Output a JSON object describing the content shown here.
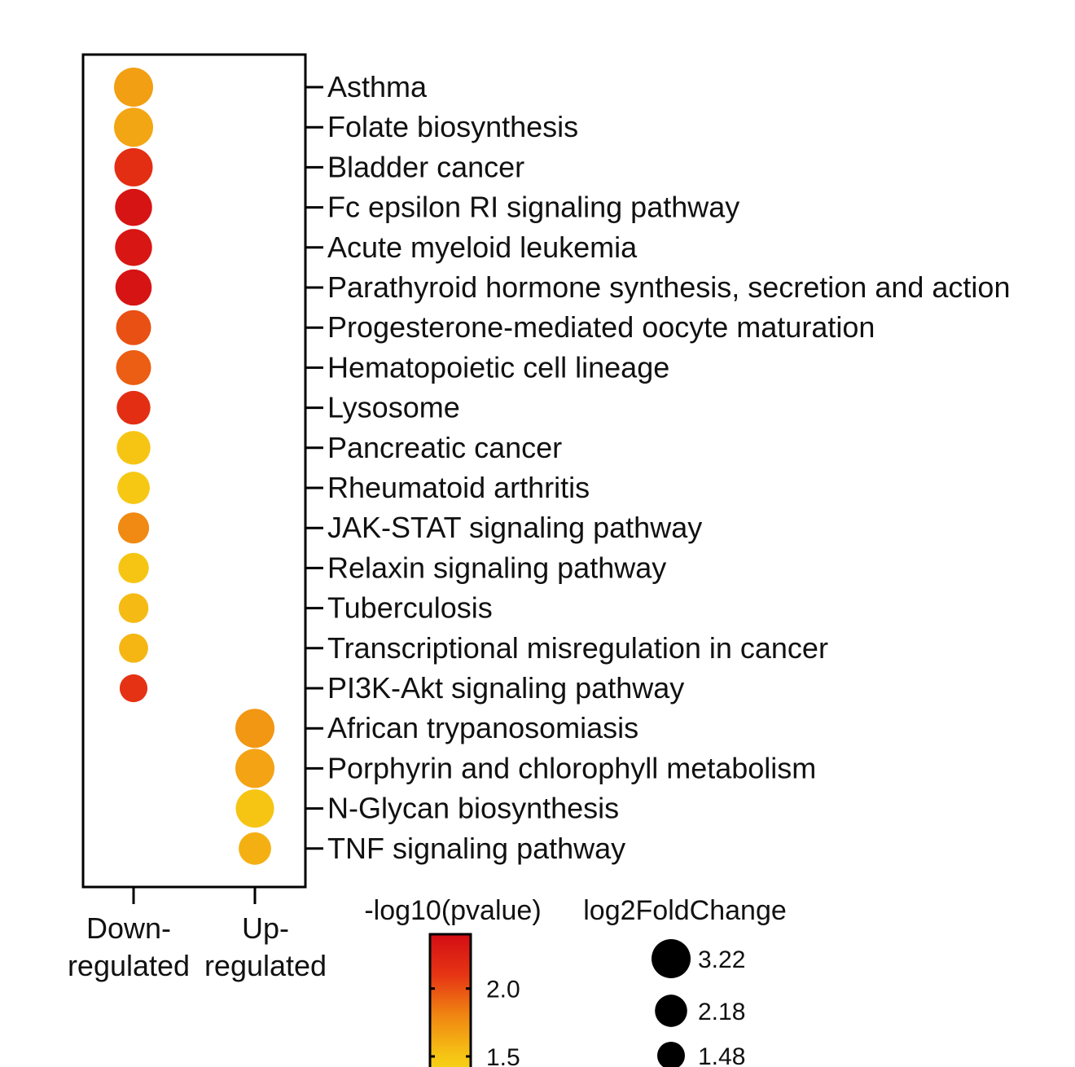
{
  "chart_data": {
    "type": "scatter",
    "x_categories": [
      "Down-\nregulated",
      "Up-\nregulated"
    ],
    "pathways": [
      "Asthma",
      "Folate biosynthesis",
      "Bladder cancer",
      "Fc epsilon RI signaling pathway",
      "Acute myeloid leukemia",
      "Parathyroid hormone synthesis, secretion and action",
      "Progesterone-mediated oocyte maturation",
      "Hematopoietic cell lineage",
      "Lysosome",
      "Pancreatic cancer",
      "Rheumatoid arthritis",
      "JAK-STAT signaling pathway",
      "Relaxin signaling pathway",
      "Tuberculosis",
      "Transcriptional misregulation in cancer",
      "PI3K-Akt signaling pathway",
      "African trypanosomiasis",
      "Porphyrin and chlorophyll metabolism",
      "N-Glycan biosynthesis",
      "TNF signaling pathway"
    ],
    "points": [
      {
        "pathway": "Asthma",
        "group": "Down-\nregulated",
        "neg_log10_pvalue": 1.68,
        "log2FoldChange": 3.22
      },
      {
        "pathway": "Folate biosynthesis",
        "group": "Down-\nregulated",
        "neg_log10_pvalue": 1.65,
        "log2FoldChange": 3.22
      },
      {
        "pathway": "Bladder cancer",
        "group": "Down-\nregulated",
        "neg_log10_pvalue": 2.15,
        "log2FoldChange": 3.1
      },
      {
        "pathway": "Fc epsilon RI signaling pathway",
        "group": "Down-\nregulated",
        "neg_log10_pvalue": 2.35,
        "log2FoldChange": 2.9
      },
      {
        "pathway": "Acute myeloid leukemia",
        "group": "Down-\nregulated",
        "neg_log10_pvalue": 2.33,
        "log2FoldChange": 2.9
      },
      {
        "pathway": "Parathyroid hormone synthesis, secretion and action",
        "group": "Down-\nregulated",
        "neg_log10_pvalue": 2.35,
        "log2FoldChange": 2.8
      },
      {
        "pathway": "Progesterone-mediated oocyte maturation",
        "group": "Down-\nregulated",
        "neg_log10_pvalue": 2.0,
        "log2FoldChange": 2.6
      },
      {
        "pathway": "Hematopoietic cell lineage",
        "group": "Down-\nregulated",
        "neg_log10_pvalue": 1.95,
        "log2FoldChange": 2.6
      },
      {
        "pathway": "Lysosome",
        "group": "Down-\nregulated",
        "neg_log10_pvalue": 2.15,
        "log2FoldChange": 2.4
      },
      {
        "pathway": "Pancreatic cancer",
        "group": "Down-\nregulated",
        "neg_log10_pvalue": 1.5,
        "log2FoldChange": 2.4
      },
      {
        "pathway": "Rheumatoid arthritis",
        "group": "Down-\nregulated",
        "neg_log10_pvalue": 1.48,
        "log2FoldChange": 2.2
      },
      {
        "pathway": "JAK-STAT signaling pathway",
        "group": "Down-\nregulated",
        "neg_log10_pvalue": 1.78,
        "log2FoldChange": 2.0
      },
      {
        "pathway": "Relaxin signaling pathway",
        "group": "Down-\nregulated",
        "neg_log10_pvalue": 1.5,
        "log2FoldChange": 1.9
      },
      {
        "pathway": "Tuberculosis",
        "group": "Down-\nregulated",
        "neg_log10_pvalue": 1.55,
        "log2FoldChange": 1.8
      },
      {
        "pathway": "Transcriptional misregulation in cancer",
        "group": "Down-\nregulated",
        "neg_log10_pvalue": 1.57,
        "log2FoldChange": 1.7
      },
      {
        "pathway": "PI3K-Akt signaling pathway",
        "group": "Down-\nregulated",
        "neg_log10_pvalue": 2.12,
        "log2FoldChange": 1.5
      },
      {
        "pathway": "African trypanosomiasis",
        "group": "Up-\nregulated",
        "neg_log10_pvalue": 1.72,
        "log2FoldChange": 3.22
      },
      {
        "pathway": "Porphyrin and chlorophyll metabolism",
        "group": "Up-\nregulated",
        "neg_log10_pvalue": 1.66,
        "log2FoldChange": 3.22
      },
      {
        "pathway": "N-Glycan biosynthesis",
        "group": "Up-\nregulated",
        "neg_log10_pvalue": 1.5,
        "log2FoldChange": 3.1
      },
      {
        "pathway": "TNF signaling pathway",
        "group": "Up-\nregulated",
        "neg_log10_pvalue": 1.6,
        "log2FoldChange": 2.2
      }
    ],
    "color_legend": {
      "title": "-log10(pvalue)",
      "ticks": [
        "2.0",
        "1.5"
      ],
      "tick_values": [
        2.0,
        1.5
      ],
      "range": [
        1.2,
        2.4
      ],
      "colors": [
        "#f5ee1a",
        "#f6c514",
        "#f08612",
        "#e63514",
        "#d40d14"
      ]
    },
    "size_legend": {
      "title": "log2FoldChange",
      "labels": [
        "3.22",
        "2.18",
        "1.48"
      ],
      "values": [
        3.22,
        2.18,
        1.48
      ]
    },
    "grid": false,
    "legend_position": "bottom"
  }
}
